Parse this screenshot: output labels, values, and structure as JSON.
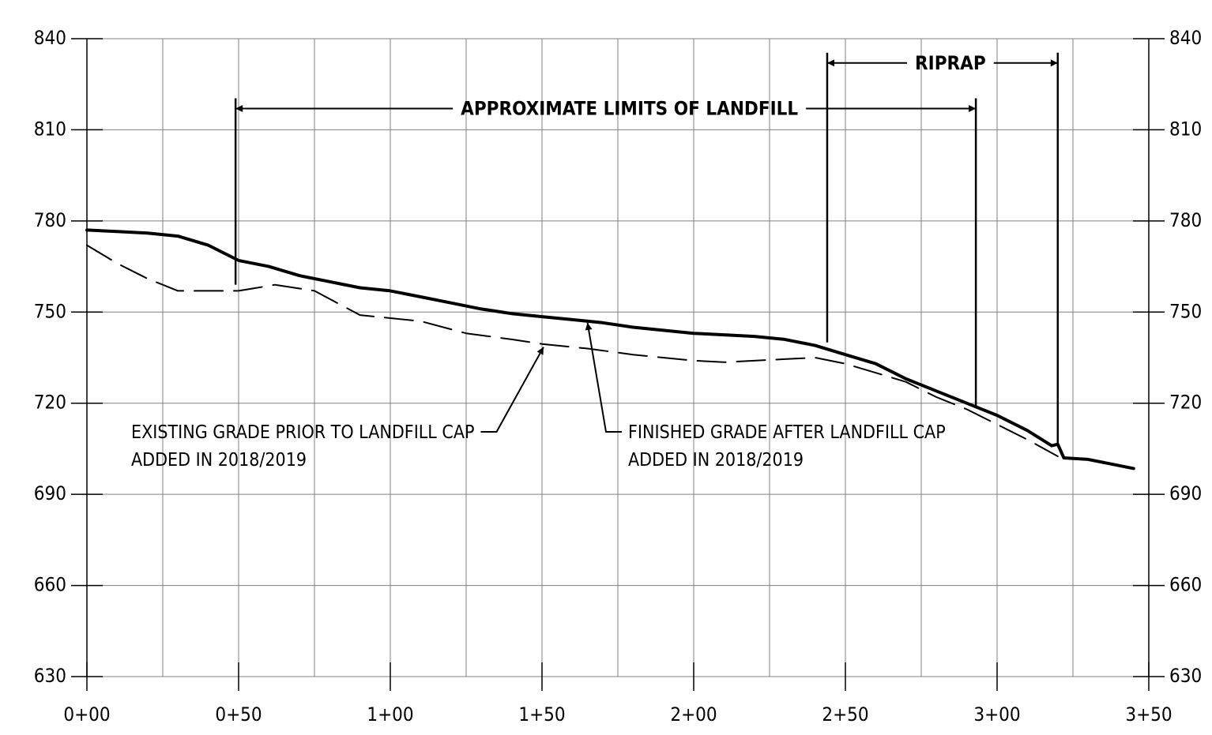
{
  "chart_data": {
    "type": "line",
    "title": "",
    "xlabel": "",
    "ylabel": "",
    "x_ticks": [
      {
        "value": 0,
        "label": "0+00"
      },
      {
        "value": 50,
        "label": "0+50"
      },
      {
        "value": 100,
        "label": "1+00"
      },
      {
        "value": 150,
        "label": "1+50"
      },
      {
        "value": 200,
        "label": "2+00"
      },
      {
        "value": 250,
        "label": "2+50"
      },
      {
        "value": 300,
        "label": "3+00"
      },
      {
        "value": 350,
        "label": "3+50"
      }
    ],
    "y_ticks": [
      840,
      810,
      780,
      750,
      720,
      690,
      660,
      630
    ],
    "xlim": [
      0,
      350
    ],
    "ylim": [
      630,
      840
    ],
    "grid": true,
    "series": [
      {
        "style": "solid",
        "points": [
          [
            0,
            777
          ],
          [
            10,
            776.5
          ],
          [
            20,
            776
          ],
          [
            30,
            775
          ],
          [
            40,
            772
          ],
          [
            50,
            767
          ],
          [
            60,
            765
          ],
          [
            70,
            762
          ],
          [
            80,
            760
          ],
          [
            90,
            758
          ],
          [
            100,
            757
          ],
          [
            110,
            755
          ],
          [
            120,
            753
          ],
          [
            130,
            751
          ],
          [
            140,
            749.5
          ],
          [
            150,
            748.5
          ],
          [
            160,
            747.5
          ],
          [
            170,
            746.5
          ],
          [
            180,
            745
          ],
          [
            190,
            744
          ],
          [
            200,
            743
          ],
          [
            210,
            742.5
          ],
          [
            220,
            742
          ],
          [
            230,
            741
          ],
          [
            240,
            739
          ],
          [
            250,
            736
          ],
          [
            260,
            733
          ],
          [
            270,
            728
          ],
          [
            280,
            724
          ],
          [
            290,
            720
          ],
          [
            300,
            716
          ],
          [
            310,
            711
          ],
          [
            318,
            706
          ],
          [
            320,
            706.5
          ],
          [
            322,
            702
          ],
          [
            330,
            701.5
          ],
          [
            340,
            699.5
          ],
          [
            345,
            698.5
          ]
        ]
      },
      {
        "style": "dashed",
        "points": [
          [
            0,
            772
          ],
          [
            10,
            766
          ],
          [
            20,
            761
          ],
          [
            25,
            759
          ],
          [
            30,
            757
          ],
          [
            40,
            757
          ],
          [
            50,
            757
          ],
          [
            62,
            759
          ],
          [
            75,
            757
          ],
          [
            90,
            749
          ],
          [
            110,
            747
          ],
          [
            125,
            743
          ],
          [
            140,
            741
          ],
          [
            150,
            739.5
          ],
          [
            165,
            738
          ],
          [
            180,
            736
          ],
          [
            200,
            734
          ],
          [
            210,
            733.5
          ],
          [
            230,
            734.5
          ],
          [
            240,
            735
          ],
          [
            250,
            733
          ],
          [
            260,
            730
          ],
          [
            270,
            727
          ],
          [
            280,
            722
          ],
          [
            290,
            718
          ],
          [
            300,
            713
          ],
          [
            310,
            708
          ],
          [
            320,
            702.5
          ]
        ]
      }
    ],
    "annotations": [
      {
        "text": "APPROXIMATE LIMITS OF LANDFILL",
        "x_start": 49,
        "x_end": 293,
        "y": 817
      },
      {
        "text": "RIPRAP",
        "x_start": 244,
        "x_end": 320,
        "y": 832
      },
      {
        "text_lines": [
          "EXISTING GRADE PRIOR TO LANDFILL CAP",
          "ADDED IN 2018/2019"
        ],
        "points_to": [
          150.5,
          739.5
        ]
      },
      {
        "text_lines": [
          "FINISHED GRADE AFTER LANDFILL CAP",
          "ADDED IN 2018/2019"
        ],
        "points_to": [
          165,
          747.5
        ]
      }
    ]
  }
}
